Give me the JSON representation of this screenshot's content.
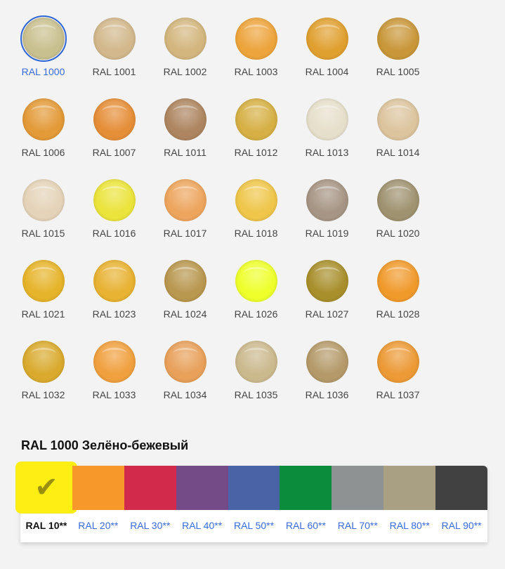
{
  "swatches": [
    {
      "label": "RAL 1000",
      "color": "#c9c08f",
      "selected": true
    },
    {
      "label": "RAL 1001",
      "color": "#d2b88c"
    },
    {
      "label": "RAL 1002",
      "color": "#d3b67e"
    },
    {
      "label": "RAL 1003",
      "color": "#eda43c"
    },
    {
      "label": "RAL 1004",
      "color": "#e0a030"
    },
    {
      "label": "RAL 1005",
      "color": "#c9973a"
    },
    {
      "label": "RAL 1006",
      "color": "#e39a38"
    },
    {
      "label": "RAL 1007",
      "color": "#e58e38"
    },
    {
      "label": "RAL 1011",
      "color": "#ad8560"
    },
    {
      "label": "RAL 1012",
      "color": "#d6b045"
    },
    {
      "label": "RAL 1013",
      "color": "#e6dfcb"
    },
    {
      "label": "RAL 1014",
      "color": "#dcc49e"
    },
    {
      "label": "RAL 1015",
      "color": "#e4d3b8"
    },
    {
      "label": "RAL 1016",
      "color": "#ebe43c"
    },
    {
      "label": "RAL 1017",
      "color": "#eda55e"
    },
    {
      "label": "RAL 1018",
      "color": "#efc64a"
    },
    {
      "label": "RAL 1019",
      "color": "#a69584"
    },
    {
      "label": "RAL 1020",
      "color": "#9f9270"
    },
    {
      "label": "RAL 1021",
      "color": "#e6b42a"
    },
    {
      "label": "RAL 1023",
      "color": "#e8b232"
    },
    {
      "label": "RAL 1024",
      "color": "#b8974f"
    },
    {
      "label": "RAL 1026",
      "color": "#eeff2c"
    },
    {
      "label": "RAL 1027",
      "color": "#a88f2c"
    },
    {
      "label": "RAL 1028",
      "color": "#f09a2c"
    },
    {
      "label": "RAL 1032",
      "color": "#d9aa2e"
    },
    {
      "label": "RAL 1033",
      "color": "#f0a03e"
    },
    {
      "label": "RAL 1034",
      "color": "#e8a05a"
    },
    {
      "label": "RAL 1035",
      "color": "#cbb98e"
    },
    {
      "label": "RAL 1036",
      "color": "#b49a6a"
    },
    {
      "label": "RAL 1037",
      "color": "#ec9a36"
    }
  ],
  "selected_title": "RAL 1000 Зелёно-бежевый",
  "palette": [
    {
      "label": "RAL 10**",
      "color": "#ffee14",
      "selected": true,
      "check": "✔"
    },
    {
      "label": "RAL 20**",
      "color": "#f6982a"
    },
    {
      "label": "RAL 30**",
      "color": "#d12a4a"
    },
    {
      "label": "RAL 40**",
      "color": "#744b87"
    },
    {
      "label": "RAL 50**",
      "color": "#4963a6"
    },
    {
      "label": "RAL 60**",
      "color": "#0b8c3d"
    },
    {
      "label": "RAL 70**",
      "color": "#8f9292"
    },
    {
      "label": "RAL 80**",
      "color": "#a9a083"
    },
    {
      "label": "RAL 90**",
      "color": "#414141"
    }
  ]
}
